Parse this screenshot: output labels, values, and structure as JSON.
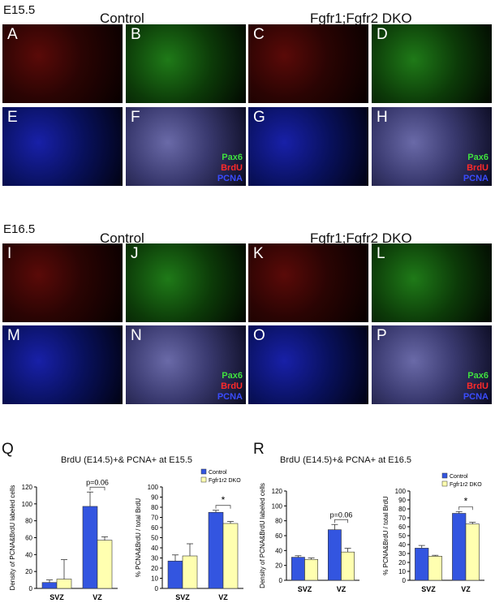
{
  "headers": {
    "e155": "E15.5",
    "control1": "Control",
    "dko1": "Fgfr1;Fgfr2 DKO",
    "e165": "E16.5",
    "control2": "Control",
    "dko2": "Fgfr1;Fgfr2 DKO"
  },
  "panels": [
    "A",
    "B",
    "C",
    "D",
    "E",
    "F",
    "G",
    "H",
    "I",
    "J",
    "K",
    "L",
    "M",
    "N",
    "O",
    "P"
  ],
  "stain_legend": {
    "green": "Pax6",
    "red": "BrdU",
    "blue": "PCNA"
  },
  "chart_labels": {
    "Q": "Q",
    "R": "R"
  },
  "chart_titles": {
    "q": "BrdU (E14.5)+& PCNA+ at E15.5",
    "r": "BrdU (E14.5)+& PCNA+ at E16.5"
  },
  "chart_data": [
    {
      "type": "bar",
      "ylabel": "Density  of PCNA&BrdU labeled cells",
      "ylim": [
        0,
        120
      ],
      "yticks": [
        0,
        20,
        40,
        60,
        80,
        100,
        120
      ],
      "categories": [
        "SVZ",
        "VZ"
      ],
      "series": [
        {
          "name": "Control",
          "values": [
            7,
            97
          ],
          "err": [
            3,
            17
          ],
          "color": "#3355e0"
        },
        {
          "name": "Fgfr1r2 DKO",
          "values": [
            11,
            57
          ],
          "err": [
            23,
            4
          ],
          "color": "#ffffb0"
        }
      ],
      "annotation": "p=0.06"
    },
    {
      "type": "bar",
      "ylabel": "% PCNA&BrdU / total BrdU",
      "ylim": [
        0,
        100
      ],
      "yticks": [
        0,
        10,
        20,
        30,
        40,
        50,
        60,
        70,
        80,
        90,
        100
      ],
      "categories": [
        "SVZ",
        "VZ"
      ],
      "series": [
        {
          "name": "Control",
          "values": [
            27,
            75
          ],
          "err": [
            6,
            2
          ],
          "color": "#3355e0"
        },
        {
          "name": "Fgfr1r2 DKO",
          "values": [
            32,
            64
          ],
          "err": [
            12,
            2
          ],
          "color": "#ffffb0"
        }
      ],
      "annotation": "*",
      "legend": [
        "Control",
        "Fgfr1r2 DKO"
      ]
    },
    {
      "type": "bar",
      "ylabel": "Density of PCNA&BrdU labeled cells",
      "ylim": [
        0,
        120
      ],
      "yticks": [
        0,
        20,
        40,
        60,
        80,
        100,
        120
      ],
      "categories": [
        "SVZ",
        "VZ"
      ],
      "series": [
        {
          "name": "Control",
          "values": [
            31,
            68
          ],
          "err": [
            2,
            7
          ],
          "color": "#3355e0"
        },
        {
          "name": "Fgfr1r2 DKO",
          "values": [
            28,
            38
          ],
          "err": [
            2,
            5
          ],
          "color": "#ffffb0"
        }
      ],
      "annotation": "p=0.06"
    },
    {
      "type": "bar",
      "ylabel": "% PCNA&BrdU / total BrdU",
      "ylim": [
        0,
        100
      ],
      "yticks": [
        0,
        10,
        20,
        30,
        40,
        50,
        60,
        70,
        80,
        90,
        100
      ],
      "categories": [
        "SVZ",
        "VZ"
      ],
      "series": [
        {
          "name": "Control",
          "values": [
            36,
            75
          ],
          "err": [
            3,
            2
          ],
          "color": "#3355e0"
        },
        {
          "name": "Fgfr1r2 DKO",
          "values": [
            27,
            63
          ],
          "err": [
            1,
            2
          ],
          "color": "#ffffb0"
        }
      ],
      "annotation": "*",
      "legend": [
        "Control",
        "Fgfr1r2 DKO"
      ]
    }
  ]
}
